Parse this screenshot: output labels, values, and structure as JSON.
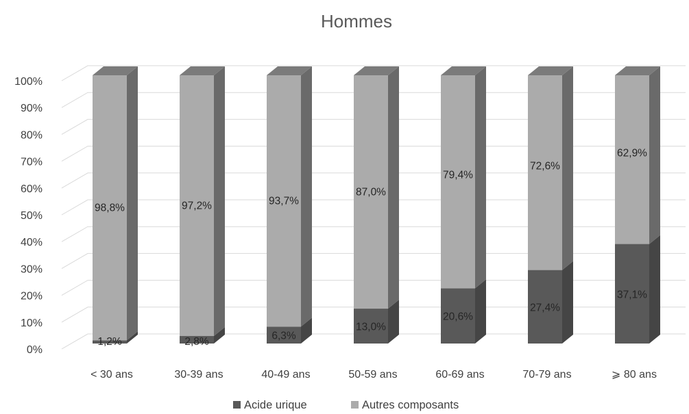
{
  "chart_data": {
    "type": "bar",
    "stacked": true,
    "percent_stacked": true,
    "three_d": true,
    "title": "Hommes",
    "categories": [
      "< 30 ans",
      "30-39 ans",
      "40-49 ans",
      "50-59 ans",
      "60-69 ans",
      "70-79 ans",
      "⩾ 80 ans"
    ],
    "series": [
      {
        "name": "Acide urique",
        "values": [
          1.2,
          2.8,
          6.3,
          13.0,
          20.6,
          27.4,
          37.1
        ],
        "labels": [
          "1,2%",
          "2,8%",
          "6,3%",
          "13,0%",
          "20,6%",
          "27,4%",
          "37,1%"
        ],
        "color": "#595959"
      },
      {
        "name": "Autres composants",
        "values": [
          98.8,
          97.2,
          93.7,
          87.0,
          79.4,
          72.6,
          62.9
        ],
        "labels": [
          "98,8%",
          "97,2%",
          "93,7%",
          "87,0%",
          "79,4%",
          "72,6%",
          "62,9%"
        ],
        "color": "#ababab"
      }
    ],
    "y_ticks": [
      "0%",
      "10%",
      "20%",
      "30%",
      "40%",
      "50%",
      "60%",
      "70%",
      "80%",
      "90%",
      "100%"
    ],
    "ylim": [
      0,
      100
    ],
    "grid": true,
    "legend_position": "bottom"
  }
}
